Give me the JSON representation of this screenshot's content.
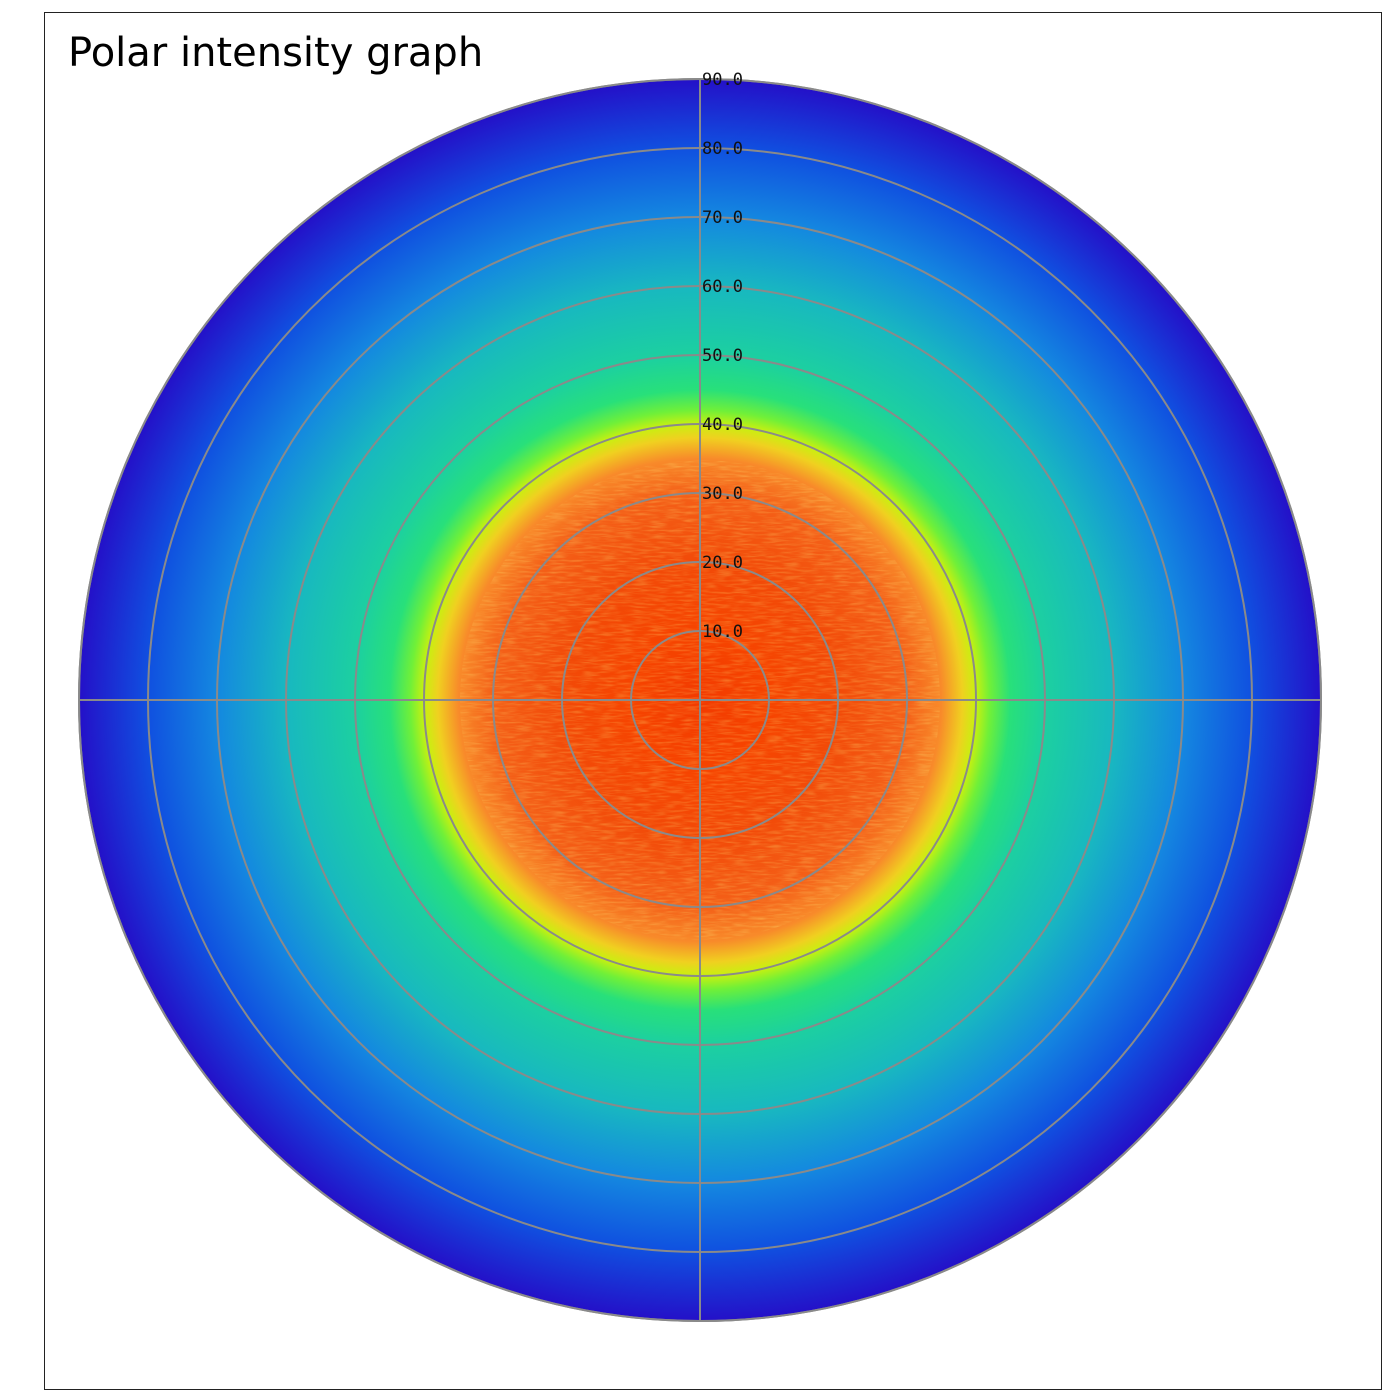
{
  "title": "Polar intensity graph",
  "chart_data": {
    "type": "heatmap",
    "projection": "polar",
    "title": "Polar intensity graph",
    "radial_ticks": [
      "10.0",
      "20.0",
      "30.0",
      "40.0",
      "50.0",
      "60.0",
      "70.0",
      "80.0",
      "90.0"
    ],
    "radial_range": [
      0,
      90
    ],
    "angular_gridlines_deg": [
      0,
      90,
      180,
      270
    ],
    "grid": true,
    "grid_color": "#8a8a8a",
    "colormap": "jet",
    "intensity_profile": {
      "radius": [
        0,
        10,
        20,
        30,
        35,
        38,
        40,
        42,
        45,
        50,
        60,
        70,
        80,
        90
      ],
      "color": [
        "#f23a00",
        "#f64400",
        "#f24a08",
        "#f46018",
        "#f88a2a",
        "#f0d020",
        "#c8f010",
        "#70f038",
        "#28e07a",
        "#1cd0a0",
        "#18b8c0",
        "#1488e0",
        "#1050e0",
        "#2410c8"
      ]
    }
  }
}
